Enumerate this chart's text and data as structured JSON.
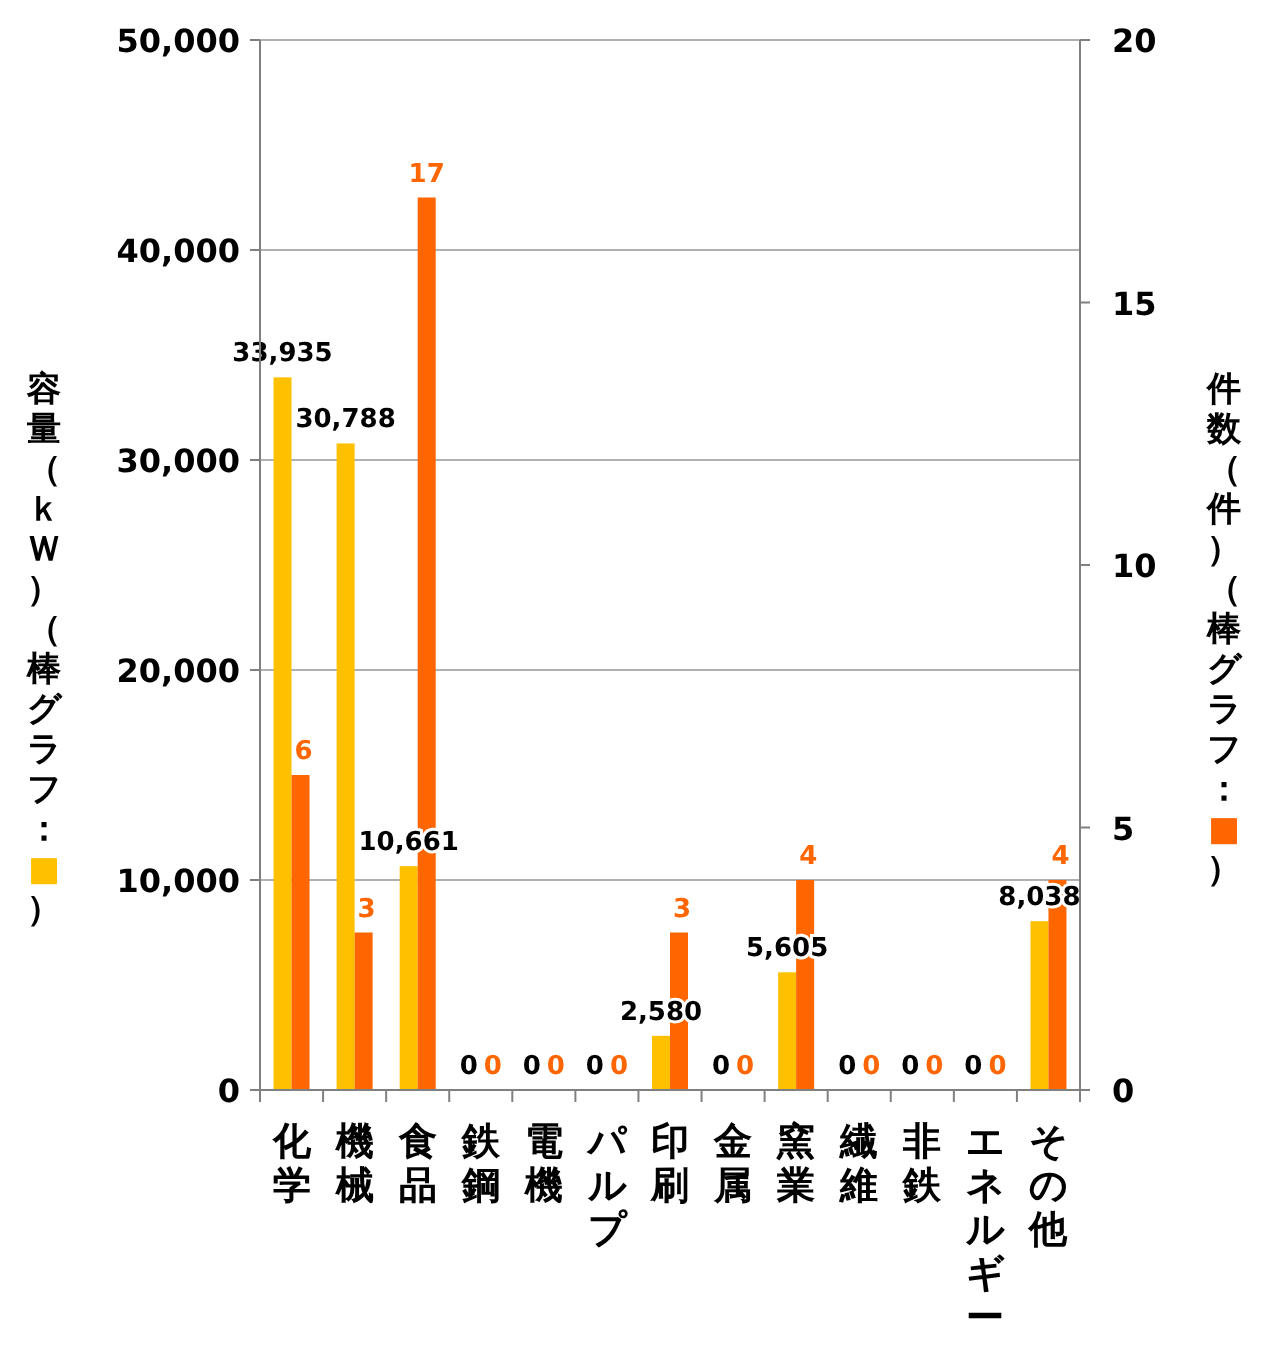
{
  "chart_data": {
    "type": "bar",
    "ylabel": "容量（ｋＷ）（棒グラフ：■）",
    "y2label": "件数（件）（棒グラフ：■）",
    "categories": [
      "化学",
      "機械",
      "食品",
      "鉄鋼",
      "電機",
      "パルプ",
      "印刷",
      "金属",
      "窯業",
      "繊維",
      "非鉄",
      "エネルギー",
      "その他"
    ],
    "series": [
      {
        "color": "#ffc000",
        "values": [
          33935,
          30788,
          10661,
          0,
          0,
          0,
          2580,
          0,
          5605,
          0,
          0,
          0,
          8038
        ],
        "value_labels": [
          "33,935",
          "30,788",
          "10,661",
          "0",
          "0",
          "0",
          "2,580",
          "0",
          "5,605",
          "0",
          "0",
          "0",
          "8,038"
        ]
      },
      {
        "color": "#ff6600",
        "axis": "y2",
        "values": [
          6,
          3,
          17,
          0,
          0,
          0,
          3,
          0,
          4,
          0,
          0,
          0,
          4
        ],
        "value_labels": [
          "6",
          "3",
          "17",
          "0",
          "0",
          "0",
          "3",
          "0",
          "4",
          "0",
          "0",
          "0",
          "4"
        ]
      }
    ],
    "ylim": [
      0,
      50000
    ],
    "yticks": [
      0,
      {
        "value": 10000,
        "label": "10,000"
      },
      {
        "value": 20000,
        "label": "20,000"
      },
      {
        "value": 30000,
        "label": "30,000"
      },
      {
        "value": 40000,
        "label": "40,000"
      },
      {
        "value": 50000,
        "label": "50,000"
      }
    ],
    "y2lim": [
      0,
      20
    ],
    "y2ticks": [
      0,
      5,
      10,
      15,
      20
    ],
    "grid": "y"
  }
}
